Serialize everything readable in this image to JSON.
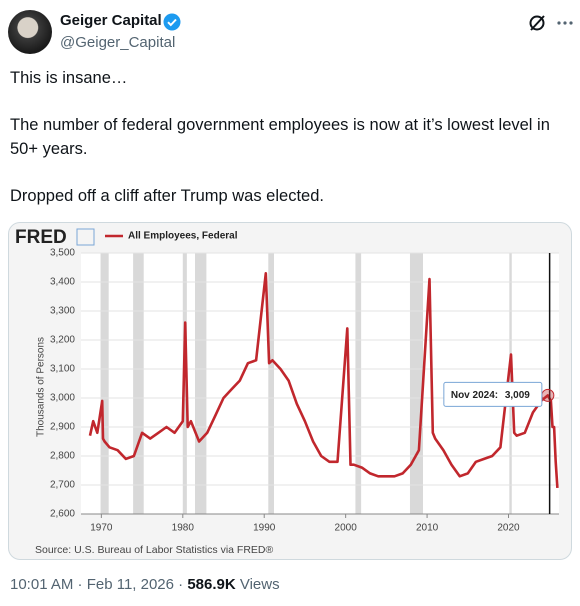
{
  "author": {
    "name": "Geiger Capital",
    "handle": "@Geiger_Capital"
  },
  "text": [
    "This is insane…",
    "The number of federal government employees is now at it’s lowest level in 50+ years.",
    "Dropped off a cliff after Trump was elected."
  ],
  "meta": {
    "time": "10:01 AM · Feb 11, 2026 · ",
    "views": "586.9K",
    "views_label": " Views"
  },
  "chart_data": {
    "type": "line",
    "logo": "FRED",
    "y_label": "Thousands of Persons",
    "source": "Source: U.S. Bureau of Labor Statistics via FRED®",
    "series": [
      {
        "name": "All Employees, Federal",
        "color": "#c1272d",
        "x": [
          1968.6,
          1969.0,
          1969.5,
          1970.1,
          1970.2,
          1970.4,
          1971,
          1972,
          1973,
          1974,
          1975,
          1976,
          1977,
          1978,
          1979,
          1980.0,
          1980.3,
          1980.6,
          1981,
          1982,
          1983,
          1984,
          1985,
          1986,
          1987,
          1988,
          1989,
          1990.2,
          1990.6,
          1991,
          1992,
          1993,
          1994,
          1995,
          1996,
          1997,
          1998,
          1999,
          2000.2,
          2000.6,
          2001,
          2002,
          2003,
          2004,
          2005,
          2006,
          2007,
          2008,
          2009,
          2010.3,
          2010.7,
          2011,
          2012,
          2013,
          2014,
          2015,
          2016,
          2017,
          2018,
          2019,
          2020.3,
          2020.7,
          2021,
          2022,
          2023,
          2024.0,
          2024.83,
          2025.2,
          2025.4,
          2025.6,
          2025.8,
          2026.0
        ],
        "values": [
          2870,
          2920,
          2880,
          2990,
          2860,
          2850,
          2830,
          2820,
          2790,
          2800,
          2880,
          2860,
          2880,
          2900,
          2880,
          2920,
          3260,
          2900,
          2920,
          2850,
          2880,
          2940,
          3000,
          3030,
          3060,
          3120,
          3130,
          3430,
          3120,
          3130,
          3100,
          3060,
          2980,
          2920,
          2850,
          2800,
          2780,
          2780,
          3240,
          2770,
          2770,
          2760,
          2740,
          2730,
          2730,
          2730,
          2740,
          2770,
          2820,
          3410,
          2880,
          2860,
          2820,
          2770,
          2730,
          2740,
          2780,
          2790,
          2800,
          2830,
          3150,
          2880,
          2870,
          2880,
          2950,
          2990,
          3009,
          2990,
          2900,
          2900,
          2780,
          2690
        ]
      }
    ],
    "annotation": {
      "label": "Nov 2024:",
      "value_label": "3,009",
      "x": 2024.83,
      "y": 3009
    },
    "vline_x": 2025.05,
    "shaded": [
      [
        1969.9,
        1970.9
      ],
      [
        1973.9,
        1975.2
      ],
      [
        1980.0,
        1980.5
      ],
      [
        1981.5,
        1982.9
      ],
      [
        1990.5,
        1991.2
      ],
      [
        2001.2,
        2001.9
      ],
      [
        2007.9,
        2009.5
      ],
      [
        2020.1,
        2020.4
      ]
    ],
    "xlim": [
      1967.5,
      2026.2
    ],
    "xticks": [
      1970,
      1980,
      1990,
      2000,
      2010,
      2020
    ],
    "ylim": [
      2600,
      3500
    ],
    "yticks": [
      {
        "value": 2600,
        "label": "2,600"
      },
      {
        "value": 2700,
        "label": "2,700"
      },
      {
        "value": 2800,
        "label": "2,800"
      },
      {
        "value": 2900,
        "label": "2,900"
      },
      {
        "value": 3000,
        "label": "3,000"
      },
      {
        "value": 3100,
        "label": "3,100"
      },
      {
        "value": 3200,
        "label": "3,200"
      },
      {
        "value": 3300,
        "label": "3,300"
      },
      {
        "value": 3400,
        "label": "3,400"
      },
      {
        "value": 3500,
        "label": "3,500"
      }
    ],
    "grid": true
  }
}
